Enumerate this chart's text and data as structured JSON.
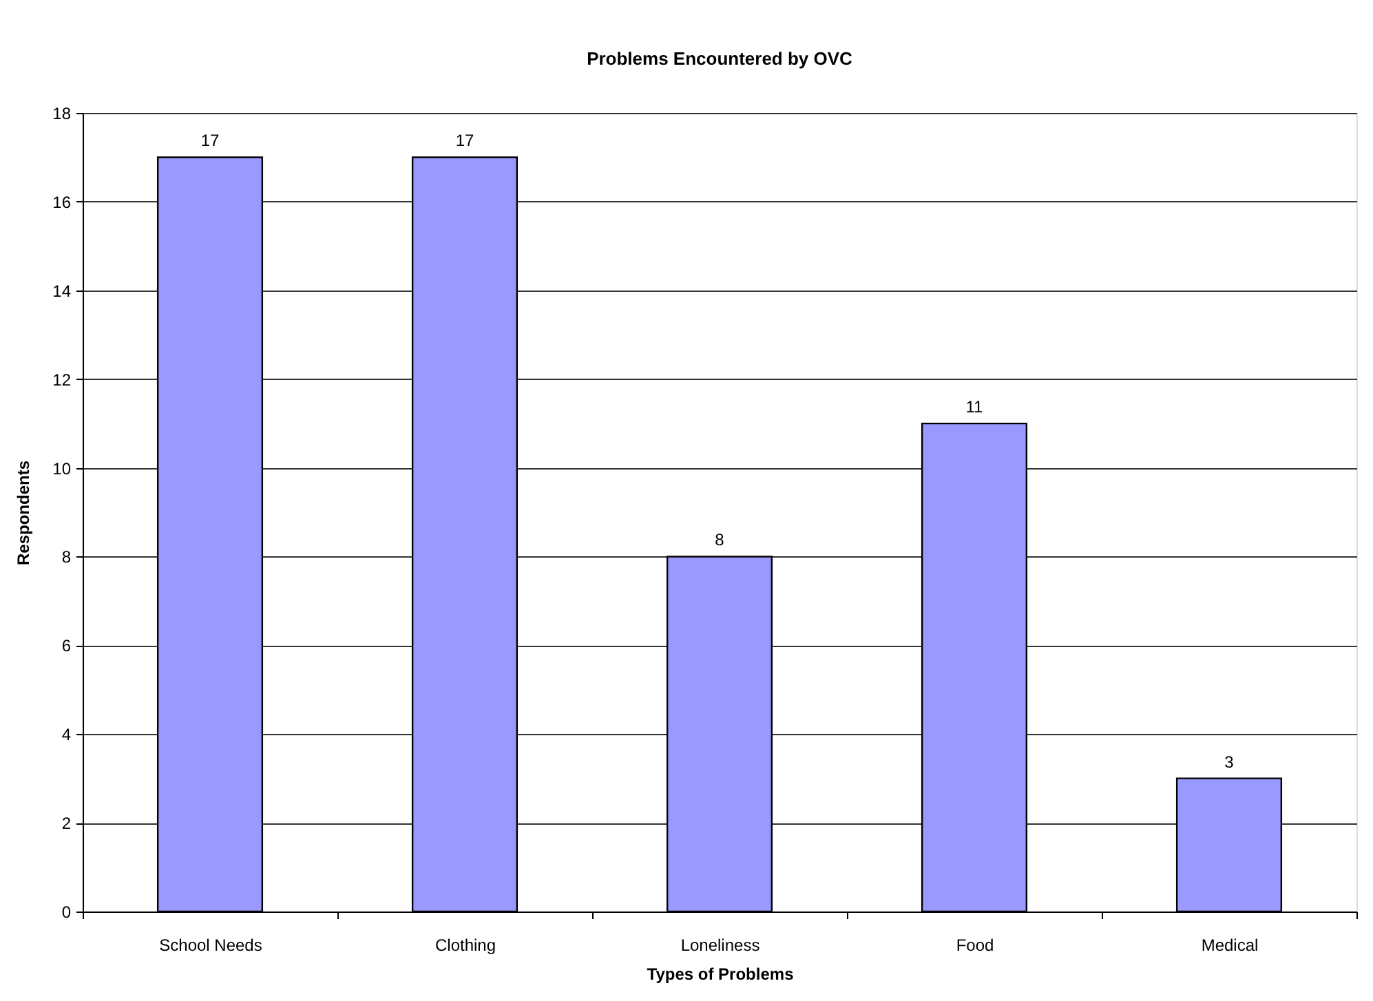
{
  "chart_data": {
    "type": "bar",
    "title": "Problems Encountered by OVC",
    "xlabel": "Types of Problems",
    "ylabel": "Respondents",
    "categories": [
      "School Needs",
      "Clothing",
      "Loneliness",
      "Food",
      "Medical"
    ],
    "values": [
      17,
      17,
      8,
      11,
      3
    ],
    "color": "#9999ff",
    "ylim": [
      0,
      18
    ],
    "yticks": [
      0,
      2,
      4,
      6,
      8,
      10,
      12,
      14,
      16,
      18
    ],
    "grid": "y",
    "data_labels": true
  }
}
